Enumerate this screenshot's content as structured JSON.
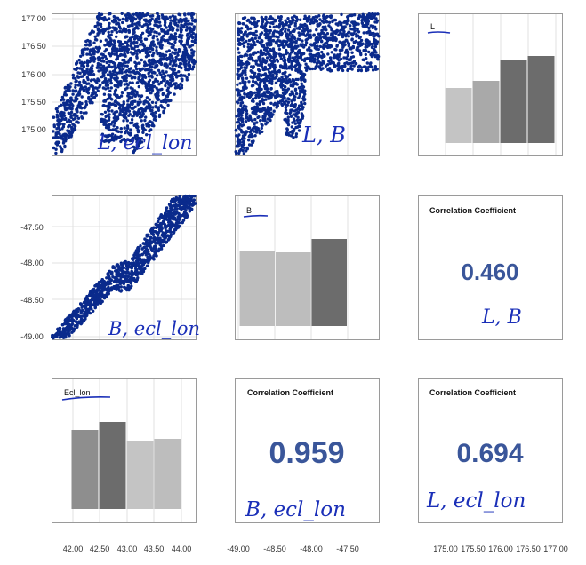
{
  "chart_data": {
    "type": "scatter",
    "subtype": "scatter-matrix",
    "variables": [
      "L",
      "B",
      "Ecl_lon"
    ],
    "axes": {
      "L": {
        "ticks": [
          "175.00",
          "175.50",
          "176.00",
          "176.50",
          "177.00"
        ],
        "range": [
          174.6,
          177.1
        ]
      },
      "B": {
        "ticks": [
          "-49.00",
          "-48.50",
          "-48.00",
          "-47.50"
        ],
        "range": [
          -49.05,
          -47.05
        ]
      },
      "Ecl_lon": {
        "ticks": [
          "42.00",
          "42.50",
          "43.00",
          "43.50",
          "44.00"
        ],
        "range": [
          41.6,
          44.3
        ]
      }
    },
    "scatter_panels": [
      {
        "x": "Ecl_lon",
        "y": "L",
        "annotation": "L, ecl_lon",
        "point_color": "#0a2a8c"
      },
      {
        "x": "B",
        "y": "L",
        "annotation": "L, B",
        "point_color": "#0a2a8c"
      },
      {
        "x": "Ecl_lon",
        "y": "B",
        "annotation": "B, ecl_lon",
        "point_color": "#0a2a8c"
      }
    ],
    "histograms": [
      {
        "variable": "L",
        "label": "L",
        "values": [
          62,
          70,
          94,
          98
        ],
        "colors": [
          "#c4c4c4",
          "#a9a9a9",
          "#6c6c6c",
          "#6c6c6c"
        ]
      },
      {
        "variable": "B",
        "label": "B",
        "values": [
          84,
          83,
          98
        ],
        "colors": [
          "#bdbdbd",
          "#bdbdbd",
          "#6c6c6c"
        ]
      },
      {
        "variable": "Ecl_lon",
        "label": "Ecl_lon",
        "values": [
          89,
          98,
          77,
          79
        ],
        "colors": [
          "#8e8e8e",
          "#6c6c6c",
          "#c4c4c4",
          "#bdbdbd"
        ]
      }
    ],
    "correlations": [
      {
        "title": "Correlation Coefficient",
        "value": "0.460",
        "annotation": "L, B"
      },
      {
        "title": "Correlation Coefficient",
        "value": "0.959",
        "annotation": "B, ecl_lon"
      },
      {
        "title": "Correlation Coefficient",
        "value": "0.694",
        "annotation": "L, ecl_lon"
      }
    ]
  }
}
